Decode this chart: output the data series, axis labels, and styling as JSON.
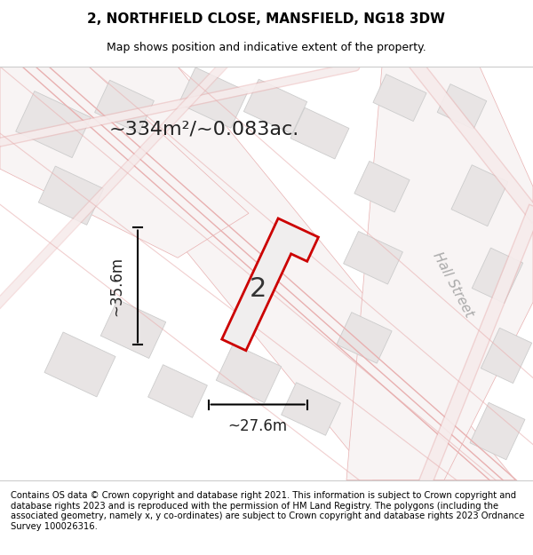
{
  "title": "2, NORTHFIELD CLOSE, MANSFIELD, NG18 3DW",
  "subtitle": "Map shows position and indicative extent of the property.",
  "area_label": "~334m²/~0.083ac.",
  "width_label": "~27.6m",
  "height_label": "~35.6m",
  "plot_number": "2",
  "footer": "Contains OS data © Crown copyright and database right 2021. This information is subject to Crown copyright and database rights 2023 and is reproduced with the permission of HM Land Registry. The polygons (including the associated geometry, namely x, y co-ordinates) are subject to Crown copyright and database rights 2023 Ordnance Survey 100026316.",
  "bg_color": "#f5f0f0",
  "map_bg": "#f9f7f7",
  "road_fill": "#ffffff",
  "road_stroke": "#e8b4b4",
  "building_fill": "#e8e4e4",
  "building_stroke": "#cccccc",
  "highlight_fill": "#f0eded",
  "highlight_stroke": "#cc0000",
  "title_fontsize": 11,
  "subtitle_fontsize": 9,
  "footer_fontsize": 7.2,
  "street_label": "Hall Street",
  "street_label2": "Hall Street"
}
